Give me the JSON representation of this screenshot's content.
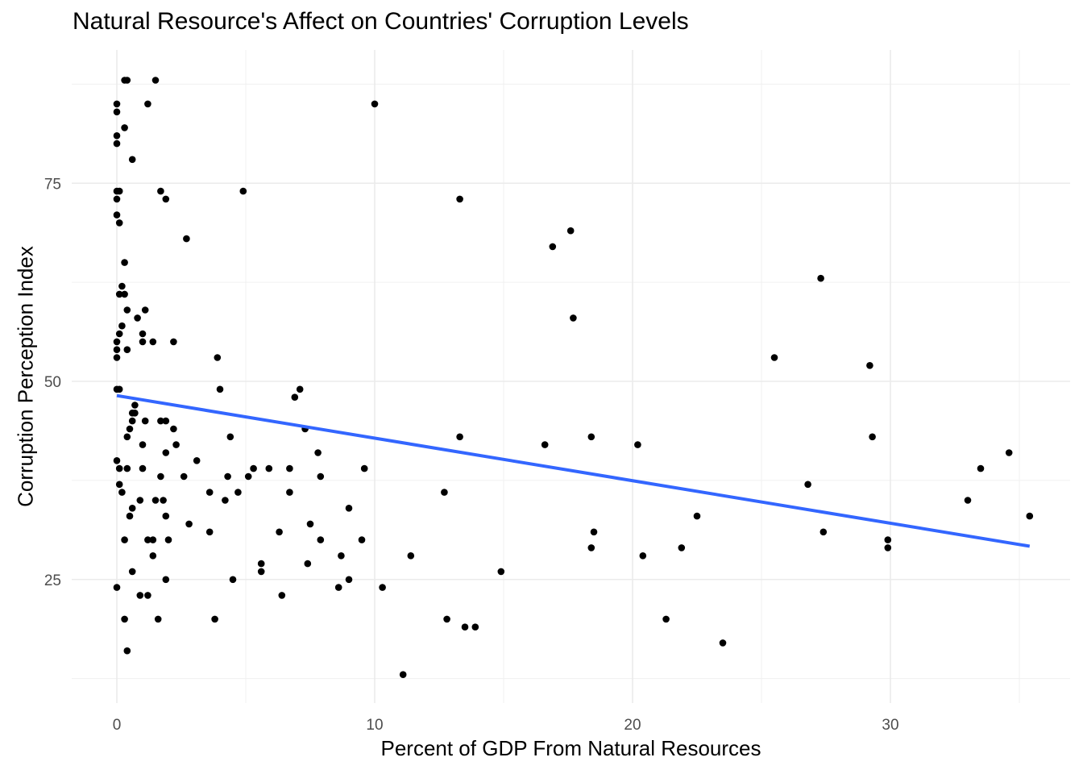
{
  "chart_data": {
    "type": "scatter",
    "title": "Natural Resource's Affect on Countries' Corruption Levels",
    "xlabel": "Percent of GDP From Natural Resources",
    "ylabel": "Corruption Perception Index",
    "xlim": [
      -1.8,
      37
    ],
    "ylim": [
      10,
      92.5
    ],
    "x_ticks": [
      0,
      10,
      20,
      30
    ],
    "x_tick_labels": [
      "0",
      "10",
      "20",
      "30"
    ],
    "x_minor_ticks": [
      5,
      15,
      25,
      35
    ],
    "y_ticks": [
      25,
      50,
      75
    ],
    "y_tick_labels": [
      "25",
      "50",
      "75"
    ],
    "y_minor_ticks": [
      12.5,
      37.5,
      62.5,
      87.5
    ],
    "grid": true,
    "theme": "minimal",
    "point_color": "#000000",
    "trend_line": {
      "type": "linear",
      "color": "#3366FF",
      "x": [
        0,
        35.4
      ],
      "y": [
        48.2,
        29.2
      ]
    },
    "points": [
      [
        0.3,
        88
      ],
      [
        0.4,
        88
      ],
      [
        1.5,
        88
      ],
      [
        0.0,
        85
      ],
      [
        1.2,
        85
      ],
      [
        10.0,
        85
      ],
      [
        0.0,
        84
      ],
      [
        0.3,
        82
      ],
      [
        0.0,
        81
      ],
      [
        0.0,
        80
      ],
      [
        0.6,
        78
      ],
      [
        0.0,
        74
      ],
      [
        0.1,
        74
      ],
      [
        1.7,
        74
      ],
      [
        4.9,
        74
      ],
      [
        0.0,
        73
      ],
      [
        1.9,
        73
      ],
      [
        13.3,
        73
      ],
      [
        0.0,
        71
      ],
      [
        0.1,
        70
      ],
      [
        17.6,
        69
      ],
      [
        2.7,
        68
      ],
      [
        16.9,
        67
      ],
      [
        0.3,
        65
      ],
      [
        27.3,
        63
      ],
      [
        0.2,
        62
      ],
      [
        0.1,
        61
      ],
      [
        0.3,
        61
      ],
      [
        0.4,
        59
      ],
      [
        1.1,
        59
      ],
      [
        0.8,
        58
      ],
      [
        17.7,
        58
      ],
      [
        0.2,
        57
      ],
      [
        0.1,
        56
      ],
      [
        1.0,
        56
      ],
      [
        0.0,
        55
      ],
      [
        1.0,
        55
      ],
      [
        1.4,
        55
      ],
      [
        2.2,
        55
      ],
      [
        0.0,
        54
      ],
      [
        0.4,
        54
      ],
      [
        0.0,
        53
      ],
      [
        3.9,
        53
      ],
      [
        25.5,
        53
      ],
      [
        29.2,
        52
      ],
      [
        0.0,
        49
      ],
      [
        0.1,
        49
      ],
      [
        4.0,
        49
      ],
      [
        7.1,
        49
      ],
      [
        6.9,
        48
      ],
      [
        0.7,
        47
      ],
      [
        0.6,
        46
      ],
      [
        0.7,
        46
      ],
      [
        0.6,
        45
      ],
      [
        1.1,
        45
      ],
      [
        1.7,
        45
      ],
      [
        1.9,
        45
      ],
      [
        0.5,
        44
      ],
      [
        2.2,
        44
      ],
      [
        7.3,
        44
      ],
      [
        0.4,
        43
      ],
      [
        4.4,
        43
      ],
      [
        13.3,
        43
      ],
      [
        18.4,
        43
      ],
      [
        29.3,
        43
      ],
      [
        1.0,
        42
      ],
      [
        2.3,
        42
      ],
      [
        16.6,
        42
      ],
      [
        20.2,
        42
      ],
      [
        1.9,
        41
      ],
      [
        7.8,
        41
      ],
      [
        34.6,
        41
      ],
      [
        0.0,
        40
      ],
      [
        3.1,
        40
      ],
      [
        0.1,
        39
      ],
      [
        0.4,
        39
      ],
      [
        1.0,
        39
      ],
      [
        5.3,
        39
      ],
      [
        5.9,
        39
      ],
      [
        6.7,
        39
      ],
      [
        9.6,
        39
      ],
      [
        33.5,
        39
      ],
      [
        1.7,
        38
      ],
      [
        2.6,
        38
      ],
      [
        4.3,
        38
      ],
      [
        5.1,
        38
      ],
      [
        7.9,
        38
      ],
      [
        0.1,
        37
      ],
      [
        26.8,
        37
      ],
      [
        0.2,
        36
      ],
      [
        3.6,
        36
      ],
      [
        4.7,
        36
      ],
      [
        6.7,
        36
      ],
      [
        12.7,
        36
      ],
      [
        0.9,
        35
      ],
      [
        1.5,
        35
      ],
      [
        1.8,
        35
      ],
      [
        4.2,
        35
      ],
      [
        33.0,
        35
      ],
      [
        0.6,
        34
      ],
      [
        9.0,
        34
      ],
      [
        0.5,
        33
      ],
      [
        1.9,
        33
      ],
      [
        22.5,
        33
      ],
      [
        35.4,
        33
      ],
      [
        2.8,
        32
      ],
      [
        7.5,
        32
      ],
      [
        3.6,
        31
      ],
      [
        6.3,
        31
      ],
      [
        18.5,
        31
      ],
      [
        27.4,
        31
      ],
      [
        0.3,
        30
      ],
      [
        1.2,
        30
      ],
      [
        1.4,
        30
      ],
      [
        2.0,
        30
      ],
      [
        7.9,
        30
      ],
      [
        9.5,
        30
      ],
      [
        29.9,
        30
      ],
      [
        18.4,
        29
      ],
      [
        21.9,
        29
      ],
      [
        29.9,
        29
      ],
      [
        1.4,
        28
      ],
      [
        8.7,
        28
      ],
      [
        11.4,
        28
      ],
      [
        20.4,
        28
      ],
      [
        5.6,
        27
      ],
      [
        7.4,
        27
      ],
      [
        0.6,
        26
      ],
      [
        5.6,
        26
      ],
      [
        14.9,
        26
      ],
      [
        1.9,
        25
      ],
      [
        4.5,
        25
      ],
      [
        9.0,
        25
      ],
      [
        0.0,
        24
      ],
      [
        8.6,
        24
      ],
      [
        10.3,
        24
      ],
      [
        0.9,
        23
      ],
      [
        1.2,
        23
      ],
      [
        6.4,
        23
      ],
      [
        0.3,
        20
      ],
      [
        1.6,
        20
      ],
      [
        3.8,
        20
      ],
      [
        12.8,
        20
      ],
      [
        21.3,
        20
      ],
      [
        13.5,
        19
      ],
      [
        13.9,
        19
      ],
      [
        23.5,
        17
      ],
      [
        0.4,
        16
      ],
      [
        11.1,
        13
      ]
    ]
  }
}
